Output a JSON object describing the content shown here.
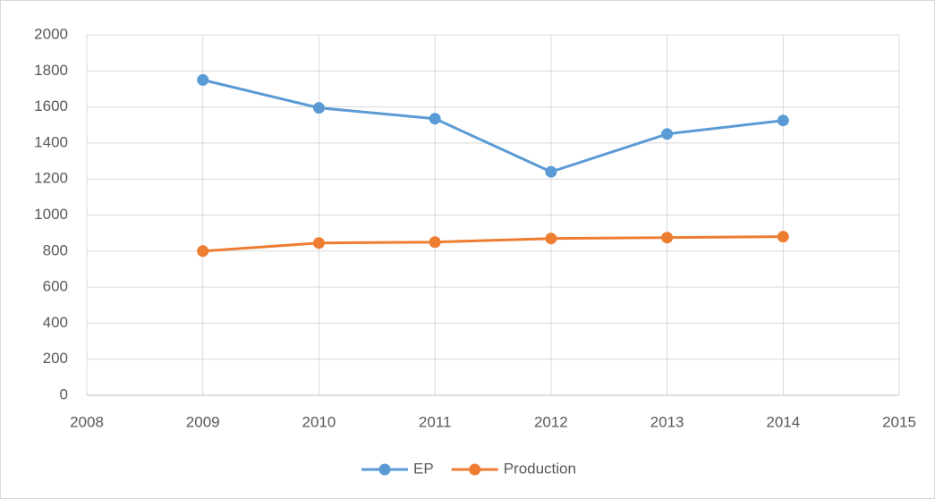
{
  "chart_data": {
    "type": "line",
    "x": [
      2009,
      2010,
      2011,
      2012,
      2013,
      2014
    ],
    "series": [
      {
        "name": "EP",
        "color": "#5b9bd5",
        "values": [
          1750,
          1595,
          1535,
          1240,
          1450,
          1525
        ]
      },
      {
        "name": "Production",
        "color": "#ed7d31",
        "values": [
          800,
          845,
          850,
          870,
          875,
          880
        ]
      }
    ],
    "xlim": [
      2008,
      2015
    ],
    "xticks": [
      2008,
      2009,
      2010,
      2011,
      2012,
      2013,
      2014,
      2015
    ],
    "ylim": [
      0,
      2000
    ],
    "yticks": [
      0,
      200,
      400,
      600,
      800,
      1000,
      1200,
      1400,
      1600,
      1800,
      2000
    ],
    "grid": true,
    "legend": "bottom"
  }
}
